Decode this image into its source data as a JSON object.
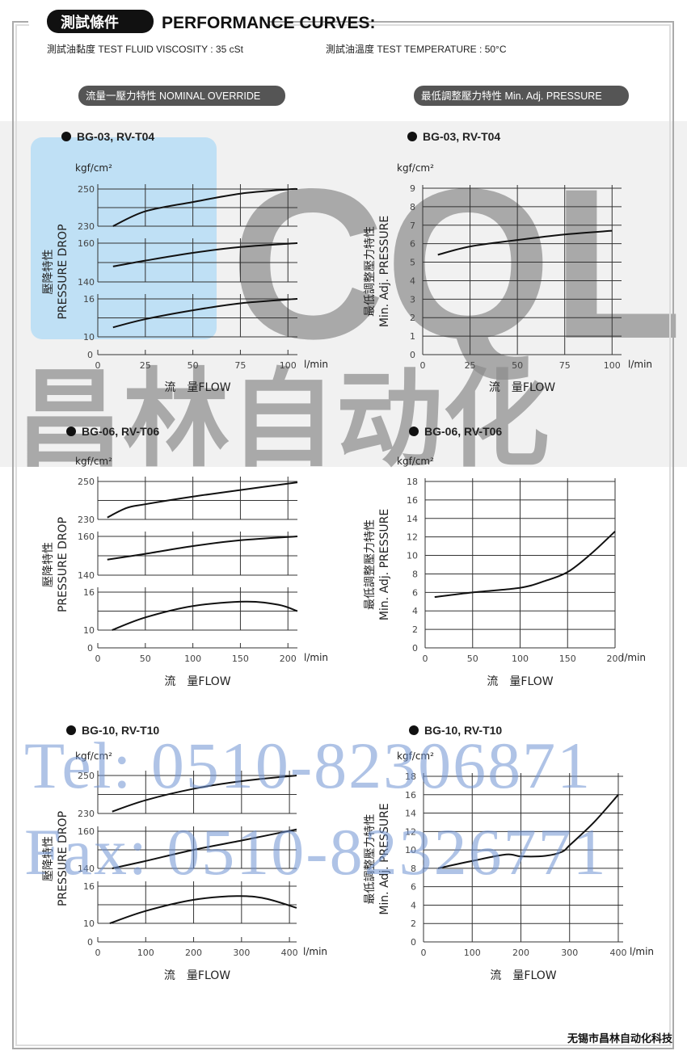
{
  "header": {
    "badge": "測試條件",
    "title": "PERFORMANCE CURVES:",
    "viscosity": "測試油黏度  TEST FLUID VISCOSITY : 35 cSt",
    "temperature": "測試油溫度  TEST TEMPERATURE : 50°C",
    "left_section": "流量一壓力特性  NOMINAL OVERRIDE",
    "right_section": "最低調整壓力特性  Min. Adj. PRESSURE"
  },
  "watermark": {
    "logo": "CQLair",
    "name": "昌林自动化",
    "tel": "Tel: 0510-82306871",
    "fax": "Fax: 0510-82326771"
  },
  "footer": "无锡市昌林自动化科技",
  "colors": {
    "curve": "#111111",
    "grid": "#333333",
    "badge": "#111111",
    "section_pill": "#555555",
    "watermark_blue": "#6f93d2"
  },
  "chart_data": [
    {
      "type": "line",
      "title": "BG-03, RV-T04",
      "yunit": "kgf/cm2",
      "ylabel_cn": "壓降特性",
      "ylabel": "PRESSURE DROP",
      "xlabel": "流　量FLOW",
      "xunit": "l/min",
      "xticks": [
        0,
        25,
        50,
        75,
        100
      ],
      "xlim": [
        0,
        105
      ],
      "yzero": "0",
      "bands": [
        {
          "ylim": [
            230,
            250
          ],
          "yticks": [
            230,
            250
          ],
          "x": [
            8,
            25,
            50,
            75,
            100,
            105
          ],
          "y": [
            230,
            238,
            243,
            247.5,
            249.8,
            250
          ]
        },
        {
          "ylim": [
            140,
            160
          ],
          "yticks": [
            140,
            160
          ],
          "x": [
            8,
            25,
            50,
            75,
            100,
            105
          ],
          "y": [
            148,
            151,
            155,
            158,
            159.7,
            160
          ]
        },
        {
          "ylim": [
            10,
            16
          ],
          "yticks": [
            10,
            16
          ],
          "x": [
            8,
            25,
            50,
            75,
            100,
            105
          ],
          "y": [
            11.5,
            12.8,
            14.2,
            15.3,
            15.9,
            16
          ]
        }
      ]
    },
    {
      "type": "line",
      "title": "BG-03, RV-T04",
      "yunit": "kgf/cm2",
      "ylabel_cn": "最低調整壓力特性",
      "ylabel": "Min. Adj. PRESSURE",
      "xlabel": "流　量FLOW",
      "xunit": "l/min",
      "xticks": [
        0,
        25,
        50,
        75,
        100
      ],
      "xlim": [
        0,
        105
      ],
      "ylim": [
        0,
        9
      ],
      "yticks": [
        0,
        1,
        2,
        3,
        4,
        5,
        6,
        7,
        8,
        9
      ],
      "x": [
        8,
        25,
        50,
        75,
        100
      ],
      "y": [
        5.4,
        5.85,
        6.2,
        6.5,
        6.7
      ]
    },
    {
      "type": "line",
      "title": "BG-06, RV-T06",
      "yunit": "kgf/cm2",
      "ylabel_cn": "壓降特性",
      "ylabel": "PRESSURE DROP",
      "xlabel": "流　量FLOW",
      "xunit": "l/min",
      "xticks": [
        0,
        50,
        100,
        150,
        200
      ],
      "xlim": [
        0,
        210
      ],
      "yzero": "0",
      "bands": [
        {
          "ylim": [
            230,
            250
          ],
          "yticks": [
            230,
            250
          ],
          "x": [
            10,
            30,
            50,
            100,
            150,
            210
          ],
          "y": [
            231,
            236,
            238,
            242,
            245.5,
            249.5
          ]
        },
        {
          "ylim": [
            140,
            160
          ],
          "yticks": [
            140,
            160
          ],
          "x": [
            10,
            50,
            100,
            150,
            210
          ],
          "y": [
            148,
            151,
            155,
            158,
            160
          ]
        },
        {
          "ylim": [
            10,
            16
          ],
          "yticks": [
            10,
            16
          ],
          "x": [
            15,
            50,
            100,
            155,
            190,
            210
          ],
          "y": [
            10,
            12,
            13.8,
            14.5,
            14,
            13
          ]
        }
      ]
    },
    {
      "type": "line",
      "title": "BG-06, RV-T06",
      "yunit": "kgf/cm2",
      "ylabel_cn": "最低調整壓力特性",
      "ylabel": "Min. Adj. PRESSURE",
      "xlabel": "流　量FLOW",
      "xunit": "l/min",
      "xticks": [
        0,
        50,
        100,
        150,
        200
      ],
      "xlim": [
        0,
        200
      ],
      "ylim": [
        0,
        18
      ],
      "yticks": [
        0,
        2,
        4,
        6,
        8,
        10,
        12,
        14,
        16,
        18
      ],
      "x": [
        10,
        50,
        100,
        125,
        150,
        175,
        200
      ],
      "y": [
        5.5,
        6,
        6.5,
        7.2,
        8.2,
        10.2,
        12.6
      ]
    },
    {
      "type": "line",
      "title": "BG-10, RV-T10",
      "yunit": "kgf/cm2",
      "ylabel_cn": "壓降特性",
      "ylabel": "PRESSURE DROP",
      "xlabel": "流　量FLOW",
      "xunit": "l/min",
      "xticks": [
        0,
        100,
        200,
        300,
        400
      ],
      "xlim": [
        0,
        415
      ],
      "yzero": "0",
      "bands": [
        {
          "ylim": [
            230,
            250
          ],
          "yticks": [
            230,
            250
          ],
          "x": [
            30,
            100,
            200,
            300,
            415
          ],
          "y": [
            231,
            237,
            243,
            247,
            250
          ]
        },
        {
          "ylim": [
            140,
            160
          ],
          "yticks": [
            140,
            160
          ],
          "x": [
            30,
            100,
            200,
            300,
            415
          ],
          "y": [
            140,
            144,
            150,
            155,
            161
          ]
        },
        {
          "ylim": [
            10,
            16
          ],
          "yticks": [
            10,
            16
          ],
          "x": [
            25,
            100,
            200,
            290,
            350,
            415
          ],
          "y": [
            10,
            12,
            13.8,
            14.4,
            14,
            12.5
          ]
        }
      ]
    },
    {
      "type": "line",
      "title": "BG-10, RV-T10",
      "yunit": "kgf/cm2",
      "ylabel_cn": "最低調整壓力特性",
      "ylabel": "Min. Adj. PRESSURE",
      "xlabel": "流　量FLOW",
      "xunit": "l/min",
      "xticks": [
        0,
        100,
        200,
        300,
        400
      ],
      "xlim": [
        0,
        410
      ],
      "ylim": [
        0,
        18
      ],
      "yticks": [
        0,
        2,
        4,
        6,
        8,
        10,
        12,
        14,
        16,
        18
      ],
      "x": [
        30,
        100,
        170,
        200,
        250,
        285,
        300,
        350,
        400
      ],
      "y": [
        8,
        8.8,
        9.5,
        9.3,
        9.35,
        9.8,
        10.5,
        13,
        16
      ]
    }
  ]
}
